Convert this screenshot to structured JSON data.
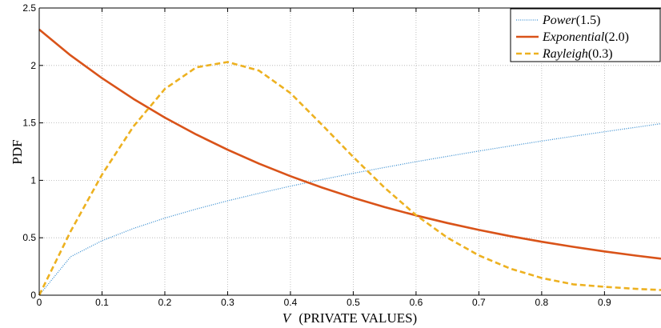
{
  "chart_data": {
    "type": "line",
    "xlabel_var": "V",
    "xlabel_text": "(PRIVATE VALUES)",
    "ylabel": "PDF",
    "xlim": [
      0,
      0.99
    ],
    "ylim": [
      0,
      2.5
    ],
    "x_ticks": [
      "0",
      "0.1",
      "0.2",
      "0.3",
      "0.4",
      "0.5",
      "0.6",
      "0.7",
      "0.8",
      "0.9"
    ],
    "y_ticks": [
      "0",
      "0.5",
      "1",
      "1.5",
      "2",
      "2.5"
    ],
    "grid": true,
    "legend_position": "top-right",
    "colors": {
      "power": "#3a8fd1",
      "exponential": "#d95319",
      "rayleigh": "#edb120",
      "grid": "#b0b0b0",
      "axis": "#000000"
    },
    "x": [
      0,
      0.05,
      0.1,
      0.15,
      0.2,
      0.25,
      0.3,
      0.35,
      0.4,
      0.45,
      0.5,
      0.55,
      0.6,
      0.65,
      0.7,
      0.75,
      0.8,
      0.85,
      0.9,
      0.95,
      0.99
    ],
    "series": [
      {
        "key": "power",
        "name_main": "Power",
        "name_param": "(1.5)",
        "style": "dotted",
        "values": [
          0,
          0.335,
          0.474,
          0.581,
          0.671,
          0.75,
          0.822,
          0.887,
          0.949,
          1.006,
          1.061,
          1.112,
          1.162,
          1.209,
          1.255,
          1.299,
          1.342,
          1.383,
          1.423,
          1.462,
          1.493
        ]
      },
      {
        "key": "exponential",
        "name_main": "Exponential",
        "name_param": "(2.0)",
        "style": "solid",
        "values": [
          2.313,
          2.088,
          1.889,
          1.709,
          1.546,
          1.399,
          1.266,
          1.145,
          1.036,
          0.937,
          0.848,
          0.767,
          0.694,
          0.628,
          0.568,
          0.514,
          0.465,
          0.421,
          0.381,
          0.345,
          0.318
        ]
      },
      {
        "key": "rayleigh",
        "name_main": "Rayleigh",
        "name_param": "(0.3)",
        "style": "dashed",
        "values": [
          0,
          0.555,
          1.05,
          1.469,
          1.795,
          1.983,
          2.03,
          1.955,
          1.76,
          1.485,
          1.203,
          0.935,
          0.697,
          0.5,
          0.346,
          0.232,
          0.15,
          0.095,
          0.073,
          0.055,
          0.045
        ]
      }
    ]
  }
}
